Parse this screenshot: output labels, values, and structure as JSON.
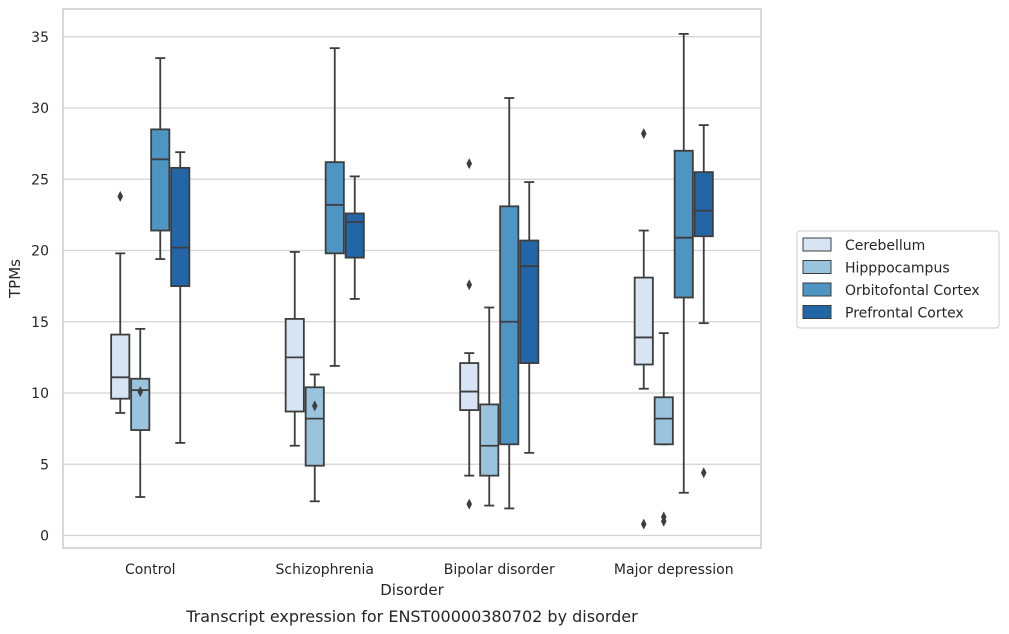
{
  "chart_data": {
    "type": "box",
    "caption": "Transcript expression for ENST00000380702 by disorder",
    "xlabel": "Disorder",
    "ylabel": "TPMs",
    "ylim": [
      -0.8,
      37
    ],
    "yticks": [
      0,
      5,
      10,
      15,
      20,
      25,
      30,
      35
    ],
    "grid": "horizontal",
    "legend_position": "right",
    "categories": [
      "Control",
      "Schizophrenia",
      "Bipolar disorder",
      "Major depression"
    ],
    "series": [
      {
        "name": "Cerebellum",
        "color": "#d6e4f3",
        "boxes": [
          {
            "whisker_low": 8.6,
            "q1": 9.6,
            "median": 11.1,
            "q3": 14.1,
            "whisker_high": 19.8,
            "outliers": [
              23.8
            ]
          },
          {
            "whisker_low": 6.3,
            "q1": 8.7,
            "median": 12.5,
            "q3": 15.2,
            "whisker_high": 19.9,
            "outliers": []
          },
          {
            "whisker_low": 4.2,
            "q1": 8.8,
            "median": 10.1,
            "q3": 12.1,
            "whisker_high": 12.8,
            "outliers": [
              26.1,
              17.6,
              2.2
            ]
          },
          {
            "whisker_low": 10.3,
            "q1": 12.0,
            "median": 13.9,
            "q3": 18.1,
            "whisker_high": 21.4,
            "outliers": [
              28.2,
              0.8
            ]
          }
        ]
      },
      {
        "name": "Hipppocampus",
        "color": "#9ac4de",
        "boxes": [
          {
            "whisker_low": 2.7,
            "q1": 7.4,
            "median": 10.2,
            "q3": 11.0,
            "whisker_high": 14.5,
            "outliers": [
              10.1
            ]
          },
          {
            "whisker_low": 2.4,
            "q1": 4.9,
            "median": 8.2,
            "q3": 10.4,
            "whisker_high": 11.3,
            "outliers": [
              9.1
            ]
          },
          {
            "whisker_low": 2.1,
            "q1": 4.2,
            "median": 6.3,
            "q3": 9.2,
            "whisker_high": 16.0,
            "outliers": []
          },
          {
            "whisker_low": 6.4,
            "q1": 6.4,
            "median": 8.2,
            "q3": 9.7,
            "whisker_high": 14.2,
            "outliers": [
              1.3,
              1.0
            ]
          }
        ]
      },
      {
        "name": "Orbitofontal Cortex",
        "color": "#4f95c4",
        "boxes": [
          {
            "whisker_low": 19.4,
            "q1": 21.4,
            "median": 26.4,
            "q3": 28.5,
            "whisker_high": 33.5,
            "outliers": []
          },
          {
            "whisker_low": 11.9,
            "q1": 19.8,
            "median": 23.2,
            "q3": 26.2,
            "whisker_high": 34.2,
            "outliers": []
          },
          {
            "whisker_low": 1.9,
            "q1": 6.4,
            "median": 15.0,
            "q3": 23.1,
            "whisker_high": 30.7,
            "outliers": []
          },
          {
            "whisker_low": 3.0,
            "q1": 16.7,
            "median": 20.9,
            "q3": 27.0,
            "whisker_high": 35.2,
            "outliers": []
          }
        ]
      },
      {
        "name": "Prefrontal Cortex",
        "color": "#2366a8",
        "boxes": [
          {
            "whisker_low": 6.5,
            "q1": 17.5,
            "median": 20.2,
            "q3": 25.8,
            "whisker_high": 26.9,
            "outliers": []
          },
          {
            "whisker_low": 16.6,
            "q1": 19.5,
            "median": 22.0,
            "q3": 22.6,
            "whisker_high": 25.2,
            "outliers": []
          },
          {
            "whisker_low": 5.8,
            "q1": 12.1,
            "median": 18.9,
            "q3": 20.7,
            "whisker_high": 24.8,
            "outliers": []
          },
          {
            "whisker_low": 14.9,
            "q1": 21.0,
            "median": 22.8,
            "q3": 25.5,
            "whisker_high": 28.8,
            "outliers": [
              4.4
            ]
          }
        ]
      }
    ]
  }
}
